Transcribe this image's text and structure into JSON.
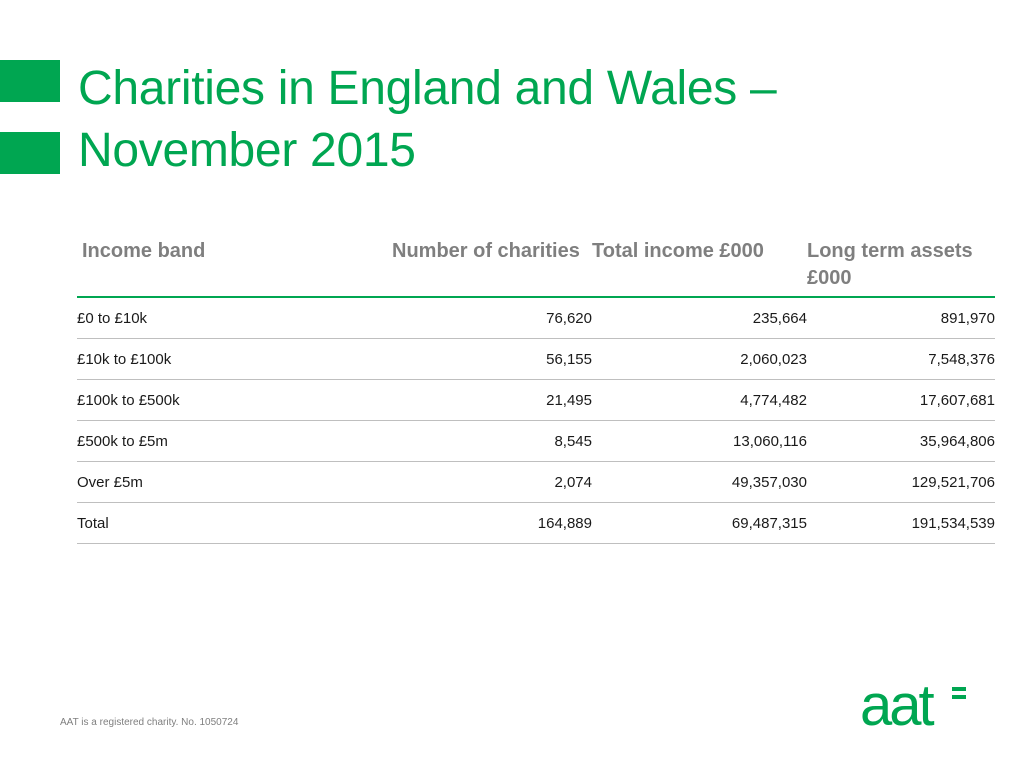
{
  "colors": {
    "accent": "#00a651",
    "header_text": "#7f7f7f",
    "body_text": "#1a1a1a",
    "rule": "#bfbfbf"
  },
  "slide": {
    "title": "Charities in England and Wales – November 2015"
  },
  "table": {
    "headers": {
      "band": "Income band",
      "number": "Number of charities",
      "income": "Total income £000",
      "assets": "Long term assets £000"
    },
    "rows": [
      {
        "band": "£0 to £10k",
        "number": "76,620",
        "income": "235,664",
        "assets": "891,970"
      },
      {
        "band": "£10k to £100k",
        "number": "56,155",
        "income": "2,060,023",
        "assets": "7,548,376"
      },
      {
        "band": "£100k to £500k",
        "number": "21,495",
        "income": "4,774,482",
        "assets": "17,607,681"
      },
      {
        "band": "£500k to £5m",
        "number": "8,545",
        "income": "13,060,116",
        "assets": "35,964,806"
      },
      {
        "band": "Over £5m",
        "number": "2,074",
        "income": "49,357,030",
        "assets": "129,521,706"
      },
      {
        "band": "Total",
        "number": "164,889",
        "income": "69,487,315",
        "assets": "191,534,539"
      }
    ]
  },
  "footer": {
    "note": "AAT is a registered charity. No. 1050724",
    "logo_text": "aat"
  }
}
